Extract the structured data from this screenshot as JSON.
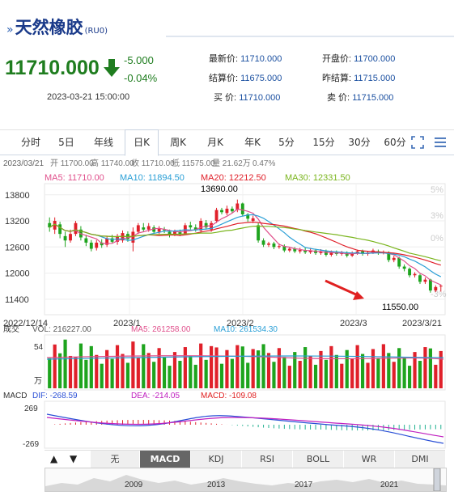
{
  "header": {
    "title": "天然橡胶",
    "code": "(RU0)",
    "price": "11710.000",
    "change": "-5.000",
    "change_pct": "-0.04%",
    "datetime": "2023-03-21 15:00:00",
    "fields": [
      {
        "k": "最新价:",
        "v": "11710.000"
      },
      {
        "k": "开盘价:",
        "v": "11700.000"
      },
      {
        "k": "结算价:",
        "v": "11675.000"
      },
      {
        "k": "昨结算:",
        "v": "11715.000"
      },
      {
        "k": "买  价:",
        "v": "11710.000"
      },
      {
        "k": "卖  价:",
        "v": "11715.000"
      }
    ],
    "colors": {
      "down": "#1f7d1f",
      "link": "#1a4fa0"
    }
  },
  "tabs": [
    "分时",
    "5日",
    "年线",
    "日K",
    "周K",
    "月K",
    "年K",
    "5分",
    "15分",
    "30分",
    "60分"
  ],
  "active_tab": "日K",
  "icons": [
    "fullscreen-icon",
    "menu-icon"
  ],
  "kline": {
    "info_date": "2023/03/21",
    "info": [
      {
        "k": "开",
        "v": "11700.00"
      },
      {
        "k": "高",
        "v": "11740.00"
      },
      {
        "k": "收",
        "v": "11710.00"
      },
      {
        "k": "低",
        "v": "11575.00"
      },
      {
        "k": "量",
        "v": "21.62万"
      },
      {
        "k": "",
        "v": "0.47%"
      }
    ],
    "ma": [
      {
        "label": "MA5: 11710.00",
        "color": "#e0508c"
      },
      {
        "label": "MA10: 11894.50",
        "color": "#2a9fd6"
      },
      {
        "label": "MA20: 12212.50",
        "color": "#e0202a"
      },
      {
        "label": "MA30: 12331.50",
        "color": "#7ab51d"
      }
    ],
    "y_ticks": [
      "13800",
      "13200",
      "12600",
      "12000",
      "11400"
    ],
    "pct_ticks": [
      "5%",
      "3%",
      "0%",
      "-3%"
    ],
    "x_ticks": [
      "2022/12/14",
      "2023/1",
      "2023/2",
      "2023/3",
      "2023/3/21"
    ],
    "max_label": "13690.00",
    "min_label": "11550.00",
    "colors": {
      "up": "#e0202a",
      "down": "#1ea41e"
    }
  },
  "volume": {
    "label": "成交",
    "vol": "VOL: 216227.00",
    "ma5": "MA5: 261258.00",
    "ma10": "MA10: 261534.30",
    "y_top": "54",
    "unit": "万"
  },
  "macd": {
    "label": "MACD",
    "dif": "DIF: -268.59",
    "dea": "DEA: -214.05",
    "macd": "MACD: -109.08",
    "y_top": "269",
    "y_bottom": "-269"
  },
  "indicators": [
    "无",
    "MACD",
    "KDJ",
    "RSI",
    "BOLL",
    "WR",
    "DMI"
  ],
  "active_indicator": "MACD",
  "overview_years": [
    "2009",
    "2013",
    "2017",
    "2021"
  ],
  "chart_data": {
    "type": "candlestick",
    "title": "天然橡胶(RU0)",
    "candles": [
      {
        "o": 13150,
        "c": 13050,
        "h": 13280,
        "l": 12950
      },
      {
        "o": 13000,
        "c": 13200,
        "h": 13280,
        "l": 12900
      },
      {
        "o": 13120,
        "c": 12900,
        "h": 13180,
        "l": 12800
      },
      {
        "o": 12850,
        "c": 12750,
        "h": 12950,
        "l": 12600
      },
      {
        "o": 12750,
        "c": 12900,
        "h": 13000,
        "l": 12700
      },
      {
        "o": 12900,
        "c": 13150,
        "h": 13200,
        "l": 12850
      },
      {
        "o": 13000,
        "c": 12820,
        "h": 13080,
        "l": 12750
      },
      {
        "o": 12800,
        "c": 12700,
        "h": 12880,
        "l": 12620
      },
      {
        "o": 12700,
        "c": 12560,
        "h": 12760,
        "l": 12500
      },
      {
        "o": 12580,
        "c": 12700,
        "h": 12760,
        "l": 12520
      },
      {
        "o": 12700,
        "c": 12640,
        "h": 12780,
        "l": 12580
      },
      {
        "o": 12650,
        "c": 12800,
        "h": 12850,
        "l": 12600
      },
      {
        "o": 12800,
        "c": 12720,
        "h": 12880,
        "l": 12680
      },
      {
        "o": 12720,
        "c": 12850,
        "h": 12900,
        "l": 12650
      },
      {
        "o": 12750,
        "c": 12920,
        "h": 12980,
        "l": 12700
      },
      {
        "o": 12900,
        "c": 12780,
        "h": 12960,
        "l": 12720
      },
      {
        "o": 12700,
        "c": 12950,
        "h": 13050,
        "l": 12500
      },
      {
        "o": 12950,
        "c": 13100,
        "h": 13150,
        "l": 12900
      },
      {
        "o": 13050,
        "c": 13000,
        "h": 13150,
        "l": 12950
      },
      {
        "o": 13000,
        "c": 13080,
        "h": 13150,
        "l": 12950
      },
      {
        "o": 13050,
        "c": 12950,
        "h": 13100,
        "l": 12900
      },
      {
        "o": 12950,
        "c": 13020,
        "h": 13080,
        "l": 12900
      },
      {
        "o": 13000,
        "c": 12980,
        "h": 13060,
        "l": 12920
      },
      {
        "o": 12950,
        "c": 12880,
        "h": 13000,
        "l": 12820
      },
      {
        "o": 12880,
        "c": 12950,
        "h": 13000,
        "l": 12850
      },
      {
        "o": 12950,
        "c": 12900,
        "h": 13000,
        "l": 12850
      },
      {
        "o": 12900,
        "c": 13100,
        "h": 13150,
        "l": 12880
      },
      {
        "o": 13100,
        "c": 13050,
        "h": 13180,
        "l": 13000
      },
      {
        "o": 13050,
        "c": 13000,
        "h": 13120,
        "l": 12950
      },
      {
        "o": 12980,
        "c": 13200,
        "h": 13260,
        "l": 12950
      },
      {
        "o": 13150,
        "c": 13050,
        "h": 13220,
        "l": 13000
      },
      {
        "o": 13000,
        "c": 13150,
        "h": 13200,
        "l": 12950
      },
      {
        "o": 13200,
        "c": 13450,
        "h": 13500,
        "l": 13150
      },
      {
        "o": 13450,
        "c": 13400,
        "h": 13500,
        "l": 13350
      },
      {
        "o": 13380,
        "c": 13480,
        "h": 13550,
        "l": 13330
      },
      {
        "o": 13480,
        "c": 13420,
        "h": 13530,
        "l": 13380
      },
      {
        "o": 13450,
        "c": 13600,
        "h": 13690,
        "l": 13400
      },
      {
        "o": 13600,
        "c": 13350,
        "h": 13620,
        "l": 13300
      },
      {
        "o": 13350,
        "c": 13250,
        "h": 13380,
        "l": 13180
      },
      {
        "o": 13200,
        "c": 13260,
        "h": 13320,
        "l": 13150
      },
      {
        "o": 13100,
        "c": 12750,
        "h": 13150,
        "l": 12700
      },
      {
        "o": 12750,
        "c": 12650,
        "h": 12800,
        "l": 12600
      },
      {
        "o": 12650,
        "c": 12680,
        "h": 12720,
        "l": 12600
      },
      {
        "o": 12680,
        "c": 12600,
        "h": 12720,
        "l": 12550
      },
      {
        "o": 12600,
        "c": 12620,
        "h": 12680,
        "l": 12560
      },
      {
        "o": 12620,
        "c": 12520,
        "h": 12660,
        "l": 12480
      },
      {
        "o": 12520,
        "c": 12560,
        "h": 12600,
        "l": 12480
      },
      {
        "o": 12560,
        "c": 12500,
        "h": 12600,
        "l": 12460
      },
      {
        "o": 12500,
        "c": 12530,
        "h": 12580,
        "l": 12450
      },
      {
        "o": 12530,
        "c": 12480,
        "h": 12580,
        "l": 12440
      },
      {
        "o": 12480,
        "c": 12520,
        "h": 12580,
        "l": 12440
      },
      {
        "o": 12520,
        "c": 12460,
        "h": 12560,
        "l": 12420
      },
      {
        "o": 12460,
        "c": 12500,
        "h": 12550,
        "l": 12420
      },
      {
        "o": 12500,
        "c": 12420,
        "h": 12540,
        "l": 12380
      },
      {
        "o": 12420,
        "c": 12480,
        "h": 12520,
        "l": 12380
      },
      {
        "o": 12480,
        "c": 12440,
        "h": 12520,
        "l": 12400
      },
      {
        "o": 12440,
        "c": 12470,
        "h": 12510,
        "l": 12400
      },
      {
        "o": 12470,
        "c": 12400,
        "h": 12500,
        "l": 12360
      },
      {
        "o": 12400,
        "c": 12450,
        "h": 12500,
        "l": 12370
      },
      {
        "o": 12450,
        "c": 12500,
        "h": 12540,
        "l": 12420
      },
      {
        "o": 12500,
        "c": 12440,
        "h": 12540,
        "l": 12400
      },
      {
        "o": 12440,
        "c": 12470,
        "h": 12510,
        "l": 12400
      },
      {
        "o": 12470,
        "c": 12520,
        "h": 12560,
        "l": 12440
      },
      {
        "o": 12500,
        "c": 12460,
        "h": 12540,
        "l": 12420
      },
      {
        "o": 12460,
        "c": 12480,
        "h": 12520,
        "l": 12430
      },
      {
        "o": 12480,
        "c": 12300,
        "h": 12500,
        "l": 12250
      },
      {
        "o": 12300,
        "c": 12350,
        "h": 12400,
        "l": 12250
      },
      {
        "o": 12350,
        "c": 12150,
        "h": 12380,
        "l": 12100
      },
      {
        "o": 12150,
        "c": 12100,
        "h": 12200,
        "l": 12040
      },
      {
        "o": 12100,
        "c": 11950,
        "h": 12130,
        "l": 11900
      },
      {
        "o": 11950,
        "c": 11980,
        "h": 12020,
        "l": 11900
      },
      {
        "o": 11950,
        "c": 11800,
        "h": 11980,
        "l": 11750
      },
      {
        "o": 11800,
        "c": 11850,
        "h": 11900,
        "l": 11750
      },
      {
        "o": 11850,
        "c": 11600,
        "h": 11870,
        "l": 11550
      },
      {
        "o": 11600,
        "c": 11680,
        "h": 11720,
        "l": 11560
      },
      {
        "o": 11700,
        "c": 11710,
        "h": 11740,
        "l": 11575
      }
    ],
    "ma5_series_end": 11710.0,
    "ma10_series_end": 11894.5,
    "ma20_series_end": 12212.5,
    "ma30_series_end": 12331.5,
    "y_range": [
      11100,
      14000
    ]
  }
}
